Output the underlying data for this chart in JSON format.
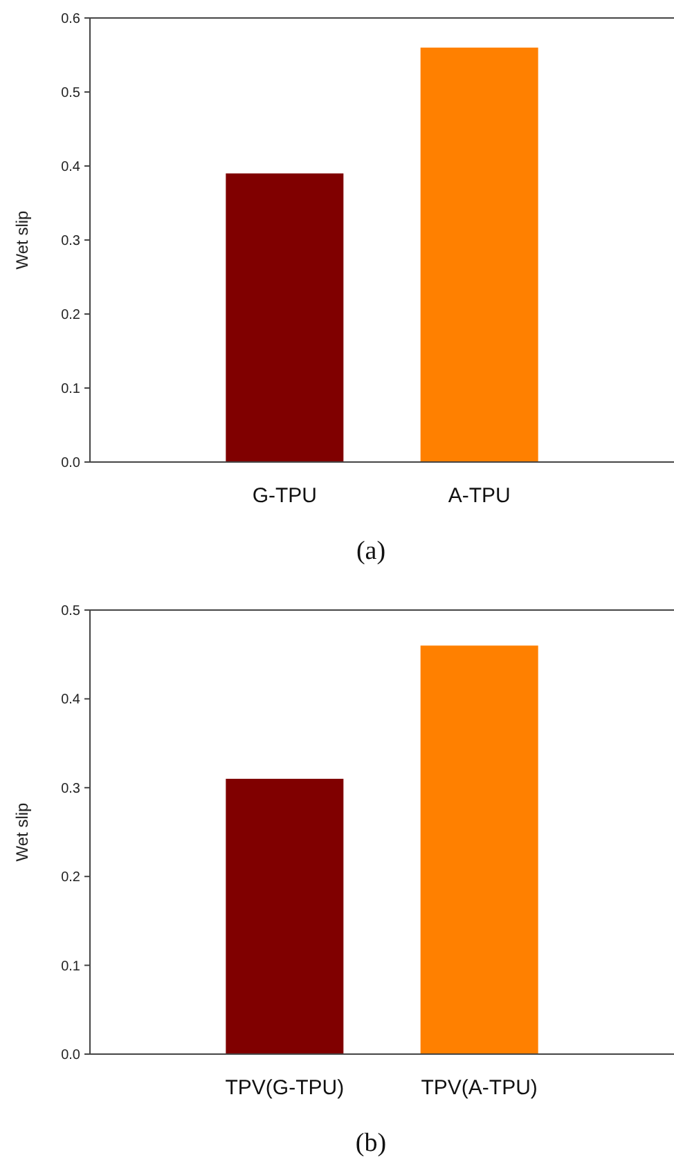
{
  "chart_data": [
    {
      "type": "bar",
      "ylabel": "Wet slip",
      "categories": [
        "G-TPU",
        "A-TPU"
      ],
      "values": [
        0.39,
        0.56
      ],
      "colors": [
        "#800000",
        "#ff8000"
      ],
      "ylim": [
        0,
        0.6
      ],
      "yticks": [
        {
          "value": 0,
          "label": "0.0"
        },
        0.1,
        0.2,
        0.3,
        0.4,
        0.5,
        0.6
      ],
      "grid": false,
      "annotations": [
        "(a)"
      ]
    },
    {
      "type": "bar",
      "ylabel": "Wet slip",
      "categories": [
        "TPV(G-TPU)",
        "TPV(A-TPU)"
      ],
      "values": [
        0.31,
        0.46
      ],
      "colors": [
        "#800000",
        "#ff8000"
      ],
      "ylim": [
        0,
        0.5
      ],
      "yticks": [
        {
          "value": 0,
          "label": "0.0"
        },
        0.1,
        0.2,
        0.3,
        0.4,
        0.5
      ],
      "grid": false,
      "annotations": [
        "(b)"
      ]
    }
  ]
}
